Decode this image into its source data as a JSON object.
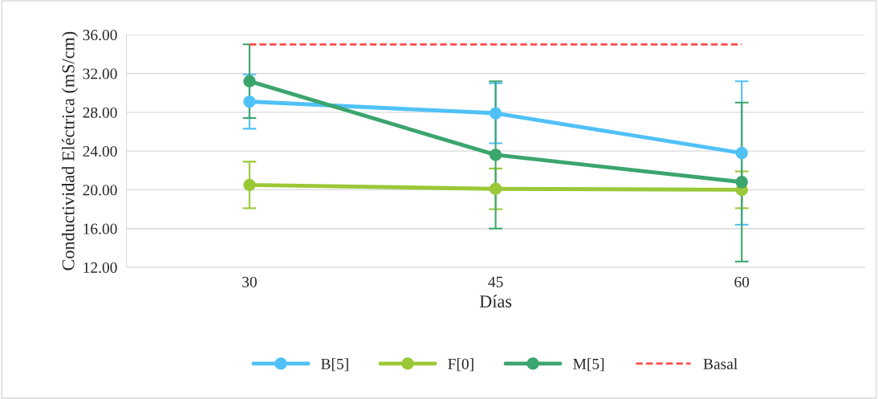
{
  "chart_data": {
    "type": "line",
    "xlabel": "Días",
    "ylabel": "Conductividad Eléctrica (mS/cm)",
    "categories": [
      "30",
      "45",
      "60"
    ],
    "ylim": [
      12,
      36
    ],
    "yticks": [
      {
        "value": 12,
        "label": "12.00"
      },
      {
        "value": 16,
        "label": "16.00"
      },
      {
        "value": 20,
        "label": "20.00"
      },
      {
        "value": 24,
        "label": "24.00"
      },
      {
        "value": 28,
        "label": "28.00"
      },
      {
        "value": 32,
        "label": "32.00"
      },
      {
        "value": 36,
        "label": "36.00"
      }
    ],
    "grid": "y",
    "legend": "bottom",
    "marker": "circle",
    "line_style": "solid",
    "series": [
      {
        "name": "B[5]",
        "color": "#4fc1f6",
        "values": [
          29.1,
          27.9,
          23.8
        ],
        "errors": [
          2.8,
          3.1,
          7.4
        ]
      },
      {
        "name": "F[0]",
        "color": "#9bc837",
        "values": [
          20.5,
          20.1,
          20.0
        ],
        "errors": [
          2.4,
          2.1,
          1.9
        ]
      },
      {
        "name": "M[5]",
        "color": "#3ba56e",
        "values": [
          31.2,
          23.6,
          20.8
        ],
        "errors": [
          3.8,
          7.6,
          8.2
        ]
      },
      {
        "name": "Basal",
        "color": "#ff4b4b",
        "values": [
          35.0,
          35.0,
          35.0
        ],
        "marker": "none",
        "line_style": "dashed"
      }
    ]
  }
}
